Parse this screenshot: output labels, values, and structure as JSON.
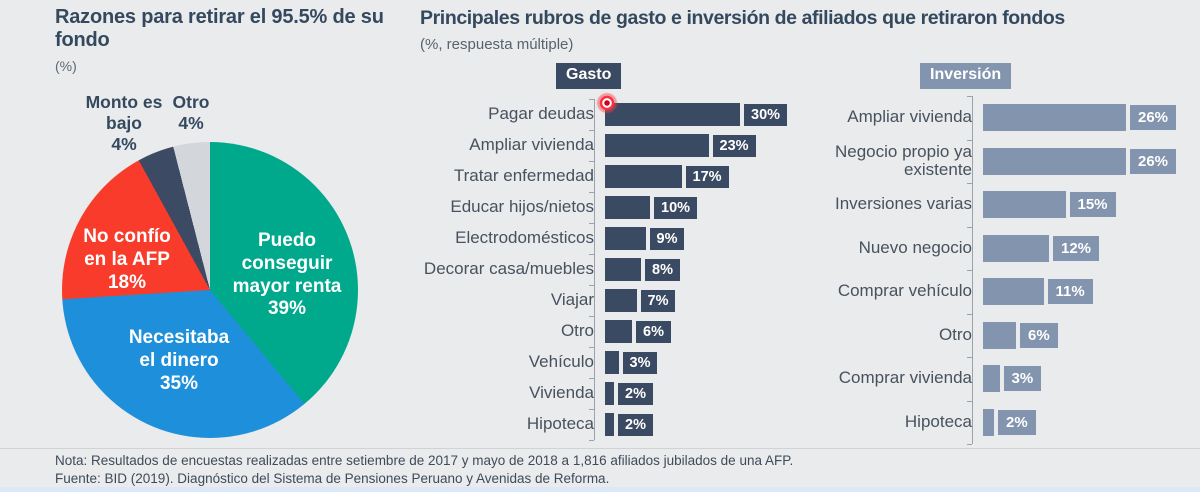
{
  "left_chart": {
    "title": "Razones para retirar el 95.5% de su fondo",
    "unit_label": "(%)"
  },
  "main": {
    "title": "Principales rubros de gasto e inversión de afiliados que retiraron fondos",
    "subtitle": "(%, respuesta múltiple)"
  },
  "footer": {
    "nota": "Nota: Resultados de encuestas realizadas entre setiembre de 2017 y mayo de 2018 a 1,816 afiliados jubilados de una AFP.",
    "fuente": "Fuente: BID (2019). Diagnóstico del Sistema de Pensiones Peruano y Avenidas de Reforma."
  },
  "colors": {
    "gasto_bar": "#3b4a63",
    "inversion_bar": "#8294ae",
    "pie_teal": "#00a98c",
    "pie_blue": "#1e8fdb",
    "pie_red": "#f93b2b",
    "pie_navy": "#3c4b63",
    "pie_gray": "#d3d6da"
  },
  "chart_data": [
    {
      "type": "pie",
      "title": "Razones para retirar el 95.5% de su fondo",
      "unit": "(%)",
      "start_angle_deg": 0,
      "direction": "clockwise",
      "slices": [
        {
          "label": "Puedo conseguir mayor renta",
          "value": 39,
          "value_label": "39%",
          "color": "#00a98c",
          "label_position": "inside"
        },
        {
          "label": "Necesitaba el dinero",
          "value": 35,
          "value_label": "35%",
          "color": "#1e8fdb",
          "label_position": "inside"
        },
        {
          "label": "No confío en la AFP",
          "value": 18,
          "value_label": "18%",
          "color": "#f93b2b",
          "label_position": "inside"
        },
        {
          "label": "Monto es bajo",
          "value": 4,
          "value_label": "4%",
          "color": "#3c4b63",
          "label_position": "outside"
        },
        {
          "label": "Otro",
          "value": 4,
          "value_label": "4%",
          "color": "#d3d6da",
          "label_position": "outside"
        }
      ]
    },
    {
      "type": "bar",
      "orientation": "horizontal",
      "badge": "Gasto",
      "color": "#3b4a63",
      "xmax": 30,
      "categories": [
        "Pagar deudas",
        "Ampliar vivienda",
        "Tratar enfermedad",
        "Educar hijos/nietos",
        "Electrodomésticos",
        "Decorar casa/muebles",
        "Viajar",
        "Otro",
        "Vehículo",
        "Vivienda",
        "Hipoteca"
      ],
      "values": [
        30,
        23,
        17,
        10,
        9,
        8,
        7,
        6,
        3,
        2,
        2
      ],
      "value_labels": [
        "30%",
        "23%",
        "17%",
        "10%",
        "9%",
        "8%",
        "7%",
        "6%",
        "3%",
        "2%",
        "2%"
      ]
    },
    {
      "type": "bar",
      "orientation": "horizontal",
      "badge": "Inversión",
      "color": "#8294ae",
      "xmax": 26,
      "categories": [
        "Ampliar vivienda",
        "Negocio propio ya existente",
        "Inversiones varias",
        "Nuevo negocio",
        "Comprar vehículo",
        "Otro",
        "Comprar vivienda",
        "Hipoteca"
      ],
      "values": [
        26,
        26,
        15,
        12,
        11,
        6,
        3,
        2
      ],
      "value_labels": [
        "26%",
        "26%",
        "15%",
        "12%",
        "11%",
        "6%",
        "3%",
        "2%"
      ]
    }
  ]
}
